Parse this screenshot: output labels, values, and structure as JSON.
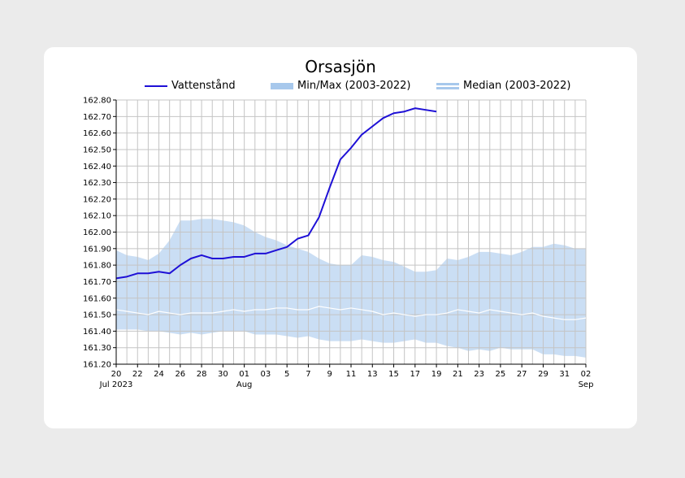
{
  "chart_data": {
    "type": "line",
    "title": "Orsasjön",
    "legend": {
      "placement": "top",
      "items": [
        {
          "label": "Vattenstånd",
          "kind": "line",
          "color": "#1e10d6"
        },
        {
          "label": "Min/Max (2003-2022)",
          "kind": "band",
          "color": "#a7c8ec"
        },
        {
          "label": "Median (2003-2022)",
          "kind": "line",
          "color": "#ffffff"
        }
      ]
    },
    "x_axis": {
      "type": "date",
      "range": [
        "2023-07-20",
        "2023-09-02"
      ],
      "tick_dates": [
        "2023-07-20",
        "2023-07-22",
        "2023-07-24",
        "2023-07-26",
        "2023-07-28",
        "2023-07-30",
        "2023-08-01",
        "2023-08-03",
        "2023-08-05",
        "2023-08-07",
        "2023-08-09",
        "2023-08-11",
        "2023-08-13",
        "2023-08-15",
        "2023-08-17",
        "2023-08-19",
        "2023-08-21",
        "2023-08-23",
        "2023-08-25",
        "2023-08-27",
        "2023-08-29",
        "2023-08-31",
        "2023-09-02"
      ],
      "tick_labels": [
        "20",
        "22",
        "24",
        "26",
        "28",
        "30",
        "01",
        "03",
        "5",
        "7",
        "9",
        "11",
        "13",
        "15",
        "17",
        "19",
        "21",
        "23",
        "25",
        "27",
        "29",
        "31",
        "02"
      ],
      "month_labels": [
        {
          "date": "2023-07-20",
          "label": "Jul 2023"
        },
        {
          "date": "2023-08-01",
          "label": "Aug"
        },
        {
          "date": "2023-09-02",
          "label": "Sep"
        }
      ]
    },
    "y_axis": {
      "range": [
        161.2,
        162.8
      ],
      "tick_labels": [
        "161.20",
        "161.30",
        "161.40",
        "161.50",
        "161.60",
        "161.70",
        "161.80",
        "161.90",
        "162.00",
        "162.10",
        "162.20",
        "162.30",
        "162.40",
        "162.50",
        "162.60",
        "162.70",
        "162.80"
      ]
    },
    "grid": true,
    "series": [
      {
        "name": "Vattenstånd",
        "color": "#1e10d6",
        "x": [
          "2023-07-20",
          "2023-07-21",
          "2023-07-22",
          "2023-07-23",
          "2023-07-24",
          "2023-07-25",
          "2023-07-26",
          "2023-07-27",
          "2023-07-28",
          "2023-07-29",
          "2023-07-30",
          "2023-07-31",
          "2023-08-01",
          "2023-08-02",
          "2023-08-03",
          "2023-08-04",
          "2023-08-05",
          "2023-08-06",
          "2023-08-07",
          "2023-08-08",
          "2023-08-09",
          "2023-08-10",
          "2023-08-11",
          "2023-08-12",
          "2023-08-13",
          "2023-08-14",
          "2023-08-15",
          "2023-08-16",
          "2023-08-17",
          "2023-08-18",
          "2023-08-19"
        ],
        "y": [
          161.72,
          161.73,
          161.75,
          161.75,
          161.76,
          161.75,
          161.8,
          161.84,
          161.86,
          161.84,
          161.84,
          161.85,
          161.85,
          161.87,
          161.87,
          161.89,
          161.91,
          161.96,
          161.98,
          162.09,
          162.27,
          162.44,
          162.51,
          162.59,
          162.64,
          162.69,
          162.72,
          162.73,
          162.75,
          162.74,
          162.73
        ]
      }
    ],
    "band": {
      "name": "Min/Max (2003-2022)",
      "color": "#a7c8ec",
      "x": [
        "2023-07-20",
        "2023-07-21",
        "2023-07-22",
        "2023-07-23",
        "2023-07-24",
        "2023-07-25",
        "2023-07-26",
        "2023-07-27",
        "2023-07-28",
        "2023-07-29",
        "2023-07-30",
        "2023-07-31",
        "2023-08-01",
        "2023-08-02",
        "2023-08-03",
        "2023-08-04",
        "2023-08-05",
        "2023-08-06",
        "2023-08-07",
        "2023-08-08",
        "2023-08-09",
        "2023-08-10",
        "2023-08-11",
        "2023-08-12",
        "2023-08-13",
        "2023-08-14",
        "2023-08-15",
        "2023-08-16",
        "2023-08-17",
        "2023-08-18",
        "2023-08-19",
        "2023-08-20",
        "2023-08-21",
        "2023-08-22",
        "2023-08-23",
        "2023-08-24",
        "2023-08-25",
        "2023-08-26",
        "2023-08-27",
        "2023-08-28",
        "2023-08-29",
        "2023-08-30",
        "2023-08-31",
        "2023-09-01",
        "2023-09-02"
      ],
      "max": [
        161.89,
        161.86,
        161.85,
        161.83,
        161.87,
        161.95,
        162.07,
        162.07,
        162.08,
        162.08,
        162.07,
        162.06,
        162.04,
        162.0,
        161.97,
        161.95,
        161.92,
        161.9,
        161.88,
        161.84,
        161.81,
        161.8,
        161.8,
        161.86,
        161.85,
        161.83,
        161.82,
        161.79,
        161.76,
        161.76,
        161.77,
        161.84,
        161.83,
        161.85,
        161.88,
        161.88,
        161.87,
        161.86,
        161.88,
        161.91,
        161.91,
        161.93,
        161.92,
        161.9,
        161.9
      ],
      "min": [
        161.41,
        161.41,
        161.41,
        161.4,
        161.4,
        161.39,
        161.38,
        161.39,
        161.38,
        161.39,
        161.4,
        161.4,
        161.4,
        161.38,
        161.38,
        161.38,
        161.37,
        161.36,
        161.37,
        161.35,
        161.34,
        161.34,
        161.34,
        161.35,
        161.34,
        161.33,
        161.33,
        161.34,
        161.35,
        161.33,
        161.33,
        161.31,
        161.3,
        161.28,
        161.29,
        161.28,
        161.3,
        161.29,
        161.29,
        161.29,
        161.26,
        161.26,
        161.25,
        161.25,
        161.24
      ]
    },
    "median": {
      "name": "Median (2003-2022)",
      "color": "#ffffff",
      "x": [
        "2023-07-20",
        "2023-07-21",
        "2023-07-22",
        "2023-07-23",
        "2023-07-24",
        "2023-07-25",
        "2023-07-26",
        "2023-07-27",
        "2023-07-28",
        "2023-07-29",
        "2023-07-30",
        "2023-07-31",
        "2023-08-01",
        "2023-08-02",
        "2023-08-03",
        "2023-08-04",
        "2023-08-05",
        "2023-08-06",
        "2023-08-07",
        "2023-08-08",
        "2023-08-09",
        "2023-08-10",
        "2023-08-11",
        "2023-08-12",
        "2023-08-13",
        "2023-08-14",
        "2023-08-15",
        "2023-08-16",
        "2023-08-17",
        "2023-08-18",
        "2023-08-19",
        "2023-08-20",
        "2023-08-21",
        "2023-08-22",
        "2023-08-23",
        "2023-08-24",
        "2023-08-25",
        "2023-08-26",
        "2023-08-27",
        "2023-08-28",
        "2023-08-29",
        "2023-08-30",
        "2023-08-31",
        "2023-09-01",
        "2023-09-02"
      ],
      "y": [
        161.53,
        161.52,
        161.51,
        161.5,
        161.52,
        161.51,
        161.5,
        161.51,
        161.51,
        161.51,
        161.52,
        161.53,
        161.52,
        161.53,
        161.53,
        161.54,
        161.54,
        161.53,
        161.53,
        161.55,
        161.54,
        161.53,
        161.54,
        161.53,
        161.52,
        161.5,
        161.51,
        161.5,
        161.49,
        161.5,
        161.5,
        161.51,
        161.53,
        161.52,
        161.51,
        161.53,
        161.52,
        161.51,
        161.5,
        161.51,
        161.49,
        161.48,
        161.47,
        161.47,
        161.48
      ]
    }
  }
}
